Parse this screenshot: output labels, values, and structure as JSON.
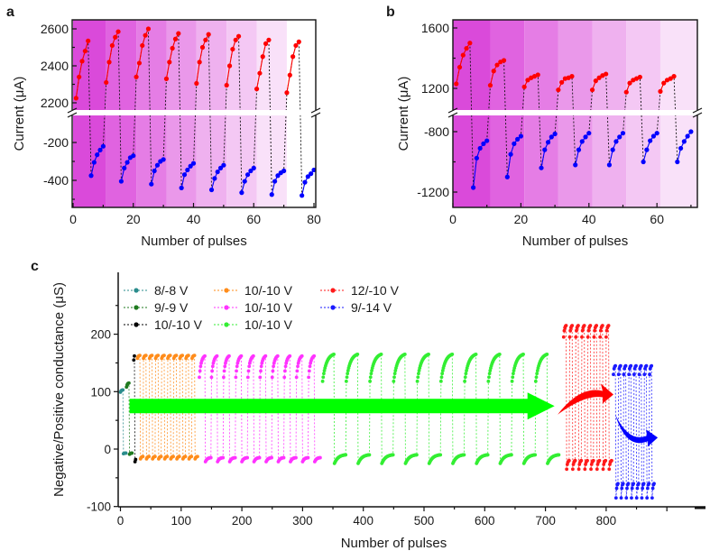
{
  "chart_data": [
    {
      "type": "line",
      "panel_label": "a",
      "xlabel": "Number of pulses",
      "ylabel": "Current (μA)",
      "xlim": [
        0,
        80
      ],
      "axis_break": true,
      "ylim_upper": [
        2146,
        2650
      ],
      "ylim_lower": [
        -543,
        -50
      ],
      "xticks": [
        0,
        20,
        40,
        60,
        80
      ],
      "yticks_upper": [
        2200,
        2400,
        2600
      ],
      "yticks_lower": [
        -400,
        -200
      ],
      "bands": {
        "edges": [
          0,
          11,
          21,
          31,
          41,
          51,
          61,
          71,
          80
        ],
        "colors": [
          "#da4ada",
          "#e063e0",
          "#e57de5",
          "#ea98ea",
          "#efb1ef",
          "#f4c8f4",
          "#f9e1f9",
          "#ffffff"
        ]
      },
      "series": [
        {
          "name": "positive",
          "color": "#ff0000",
          "x": [
            1,
            2,
            3,
            4,
            5,
            11,
            12,
            13,
            14,
            15,
            21,
            22,
            23,
            24,
            25,
            31,
            32,
            33,
            34,
            35,
            41,
            42,
            43,
            44,
            45,
            51,
            52,
            53,
            54,
            55,
            61,
            62,
            63,
            64,
            65,
            71,
            72,
            73,
            74,
            75
          ],
          "y": [
            2225,
            2340,
            2425,
            2480,
            2535,
            2310,
            2420,
            2510,
            2555,
            2585,
            2340,
            2415,
            2510,
            2565,
            2600,
            2330,
            2420,
            2495,
            2545,
            2575,
            2305,
            2420,
            2500,
            2540,
            2570,
            2295,
            2400,
            2490,
            2540,
            2560,
            2275,
            2360,
            2450,
            2520,
            2540,
            2255,
            2350,
            2450,
            2510,
            2530
          ]
        },
        {
          "name": "negative",
          "color": "#0000ff",
          "x": [
            6,
            7,
            8,
            9,
            10,
            16,
            17,
            18,
            19,
            20,
            26,
            27,
            28,
            29,
            30,
            36,
            37,
            38,
            39,
            40,
            46,
            47,
            48,
            49,
            50,
            56,
            57,
            58,
            59,
            60,
            66,
            67,
            68,
            69,
            70,
            76,
            77,
            78,
            79,
            80
          ],
          "y": [
            -375,
            -305,
            -265,
            -240,
            -220,
            -405,
            -335,
            -305,
            -280,
            -270,
            -420,
            -350,
            -320,
            -300,
            -290,
            -440,
            -370,
            -345,
            -325,
            -310,
            -450,
            -390,
            -355,
            -335,
            -320,
            -465,
            -405,
            -370,
            -350,
            -335,
            -475,
            -405,
            -375,
            -360,
            -350,
            -480,
            -410,
            -380,
            -365,
            -345
          ]
        }
      ]
    },
    {
      "type": "line",
      "panel_label": "b",
      "xlabel": "Number of pulses",
      "ylabel": "Current (μA)",
      "xlim": [
        0,
        72
      ],
      "axis_break": true,
      "ylim_upper": [
        1040,
        1654
      ],
      "ylim_lower": [
        -1300,
        -675
      ],
      "xticks": [
        0,
        20,
        40,
        60
      ],
      "yticks_upper": [
        1200,
        1600
      ],
      "yticks_lower": [
        -1200,
        -800
      ],
      "bands": {
        "edges": [
          0,
          11,
          21,
          31,
          41,
          51,
          61,
          72
        ],
        "colors": [
          "#da4ada",
          "#e063e0",
          "#e57de5",
          "#ea98ea",
          "#efb1ef",
          "#f4c8f4",
          "#f9e1f9"
        ]
      },
      "series": [
        {
          "name": "positive",
          "color": "#ff0000",
          "x": [
            1,
            2,
            3,
            4,
            5,
            11,
            12,
            13,
            14,
            15,
            21,
            22,
            23,
            24,
            25,
            31,
            32,
            33,
            34,
            35,
            41,
            42,
            43,
            44,
            45,
            51,
            52,
            53,
            54,
            55,
            61,
            62,
            63,
            64,
            65
          ],
          "y": [
            1230,
            1340,
            1420,
            1465,
            1500,
            1220,
            1315,
            1355,
            1375,
            1385,
            1210,
            1255,
            1270,
            1280,
            1290,
            1190,
            1240,
            1265,
            1270,
            1280,
            1190,
            1250,
            1270,
            1285,
            1295,
            1175,
            1235,
            1255,
            1265,
            1275,
            1180,
            1235,
            1255,
            1265,
            1280
          ]
        },
        {
          "name": "negative",
          "color": "#0000ff",
          "x": [
            6,
            7,
            8,
            9,
            10,
            16,
            17,
            18,
            19,
            20,
            26,
            27,
            28,
            29,
            30,
            36,
            37,
            38,
            39,
            40,
            46,
            47,
            48,
            49,
            50,
            56,
            57,
            58,
            59,
            60,
            66,
            67,
            68,
            69,
            70
          ],
          "y": [
            -1170,
            -975,
            -910,
            -880,
            -860,
            -1100,
            -950,
            -880,
            -850,
            -830,
            -1040,
            -920,
            -870,
            -835,
            -815,
            -1020,
            -920,
            -865,
            -835,
            -810,
            -1020,
            -920,
            -865,
            -835,
            -810,
            -1000,
            -920,
            -860,
            -830,
            -810,
            -1000,
            -910,
            -865,
            -830,
            -800
          ]
        }
      ]
    },
    {
      "type": "line",
      "panel_label": "c",
      "xlabel": "Number of pulses",
      "ylabel": "Negative/Positive conductance (μS)",
      "xlim": [
        -4,
        963
      ],
      "ylim": [
        -100,
        300
      ],
      "xticks": [
        0,
        100,
        200,
        300,
        400,
        500,
        600,
        700,
        800
      ],
      "yticks": [
        -100,
        0,
        100,
        200
      ],
      "legend_position": "top-left",
      "series": [
        {
          "name": "8/-8 V",
          "color": "#2a8c8c",
          "start": 0,
          "period": 10,
          "cycles": 1,
          "positive": [
            99,
            103
          ],
          "negative": [
            -8,
            -7
          ]
        },
        {
          "name": "9/-9 V",
          "color": "#1f7a1f",
          "start": 10,
          "period": 10,
          "cycles": 1,
          "positive": [
            108,
            115
          ],
          "negative": [
            -9,
            -7
          ]
        },
        {
          "name": "10/-10 V",
          "color": "#000000",
          "start": 22,
          "period": 4,
          "cycles": 1,
          "positive": [
            155,
            162
          ],
          "negative": [
            -22,
            -18
          ]
        },
        {
          "name": "10/-10 V",
          "color": "#ff8c1a",
          "start": 28,
          "period": 10,
          "cycles": 10,
          "positive": [
            158,
            163
          ],
          "negative": [
            -17,
            -13
          ]
        },
        {
          "name": "10/-10 V",
          "color": "#ff33ff",
          "start": 130,
          "period": 20,
          "cycles": 10,
          "positive": [
            125,
            162
          ],
          "negative": [
            -22,
            -15
          ]
        },
        {
          "name": "10/-10 V",
          "color": "#33ee33",
          "start": 333,
          "period": 39,
          "cycles": 10,
          "positive": [
            118,
            165
          ],
          "negative": [
            -25,
            -10
          ]
        },
        {
          "name": "12/-10 V",
          "color": "#ff1a1a",
          "start": 730,
          "period": 10,
          "cycles": 8,
          "positive": [
            195,
            215
          ],
          "negative": [
            -35,
            -20
          ]
        },
        {
          "name": "9/-14 V",
          "color": "#1a1aff",
          "start": 812,
          "period": 8.5,
          "cycles": 8,
          "positive": [
            130,
            145
          ],
          "negative": [
            -85,
            -60
          ]
        }
      ],
      "annotations": [
        {
          "type": "arrow",
          "color": "#00ff00",
          "from": [
            15,
            75
          ],
          "to": [
            715,
            75
          ]
        },
        {
          "type": "curved-arrow",
          "color": "#ff0000",
          "from": [
            720,
            60
          ],
          "to": [
            812,
            95
          ]
        },
        {
          "type": "curved-arrow",
          "color": "#0000ff",
          "from": [
            815,
            60
          ],
          "to": [
            885,
            20
          ]
        }
      ]
    }
  ]
}
